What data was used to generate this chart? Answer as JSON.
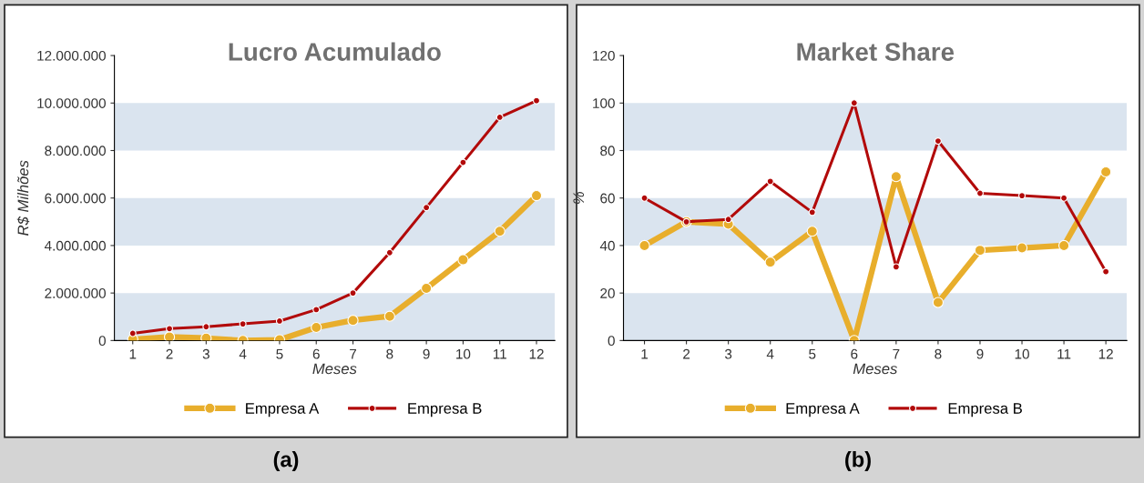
{
  "chart_data": [
    {
      "type": "line",
      "title": "Lucro Acumulado",
      "xlabel": "Meses",
      "ylabel": "R$ Milhões",
      "categories": [
        "1",
        "2",
        "3",
        "4",
        "5",
        "6",
        "7",
        "8",
        "9",
        "10",
        "11",
        "12"
      ],
      "series": [
        {
          "name": "Empresa A",
          "color": "#e8ae2c",
          "values": [
            50000,
            150000,
            100000,
            0,
            30000,
            550000,
            850000,
            1020000,
            2200000,
            3400000,
            4600000,
            6100000
          ]
        },
        {
          "name": "Empresa B",
          "color": "#b20a0a",
          "values": [
            300000,
            500000,
            580000,
            700000,
            820000,
            1300000,
            2000000,
            3700000,
            5600000,
            7500000,
            9400000,
            10100000
          ]
        }
      ],
      "ylim": [
        0,
        12000000
      ],
      "yticks": [
        {
          "value": 0,
          "label": "0"
        },
        {
          "value": 2000000,
          "label": "2.000.000"
        },
        {
          "value": 4000000,
          "label": "4.000.000"
        },
        {
          "value": 6000000,
          "label": "6.000.000"
        },
        {
          "value": 8000000,
          "label": "8.000.000"
        },
        {
          "value": 10000000,
          "label": "10.000.000"
        },
        {
          "value": 12000000,
          "label": "12.000.000"
        }
      ],
      "bands": [
        {
          "axis": "y",
          "from": 0,
          "to": 2000000,
          "color": "#dae4ef"
        },
        {
          "axis": "y",
          "from": 4000000,
          "to": 6000000,
          "color": "#dae4ef"
        },
        {
          "axis": "y",
          "from": 8000000,
          "to": 10000000,
          "color": "#dae4ef"
        }
      ],
      "marker": "circle",
      "line_style": "solid",
      "legend": "bottom",
      "grid": false,
      "annotations": [
        "(a)"
      ]
    },
    {
      "type": "line",
      "title": "Market Share",
      "xlabel": "Meses",
      "ylabel": "%",
      "categories": [
        "1",
        "2",
        "3",
        "4",
        "5",
        "6",
        "7",
        "8",
        "9",
        "10",
        "11",
        "12"
      ],
      "series": [
        {
          "name": "Empresa A",
          "color": "#e8ae2c",
          "values": [
            40,
            50,
            49,
            33,
            46,
            0,
            69,
            16,
            38,
            39,
            40,
            71
          ]
        },
        {
          "name": "Empresa B",
          "color": "#b20a0a",
          "values": [
            60,
            50,
            51,
            67,
            54,
            100,
            31,
            84,
            62,
            61,
            60,
            29
          ]
        }
      ],
      "ylim": [
        0,
        120
      ],
      "yticks": [
        0,
        20,
        40,
        60,
        80,
        100,
        120
      ],
      "bands": [
        {
          "axis": "y",
          "from": 0,
          "to": 20,
          "color": "#dae4ef"
        },
        {
          "axis": "y",
          "from": 40,
          "to": 60,
          "color": "#dae4ef"
        },
        {
          "axis": "y",
          "from": 80,
          "to": 100,
          "color": "#dae4ef"
        }
      ],
      "marker": "circle",
      "line_style": "solid",
      "legend": "bottom",
      "grid": false,
      "annotations": [
        "(b)"
      ]
    }
  ]
}
